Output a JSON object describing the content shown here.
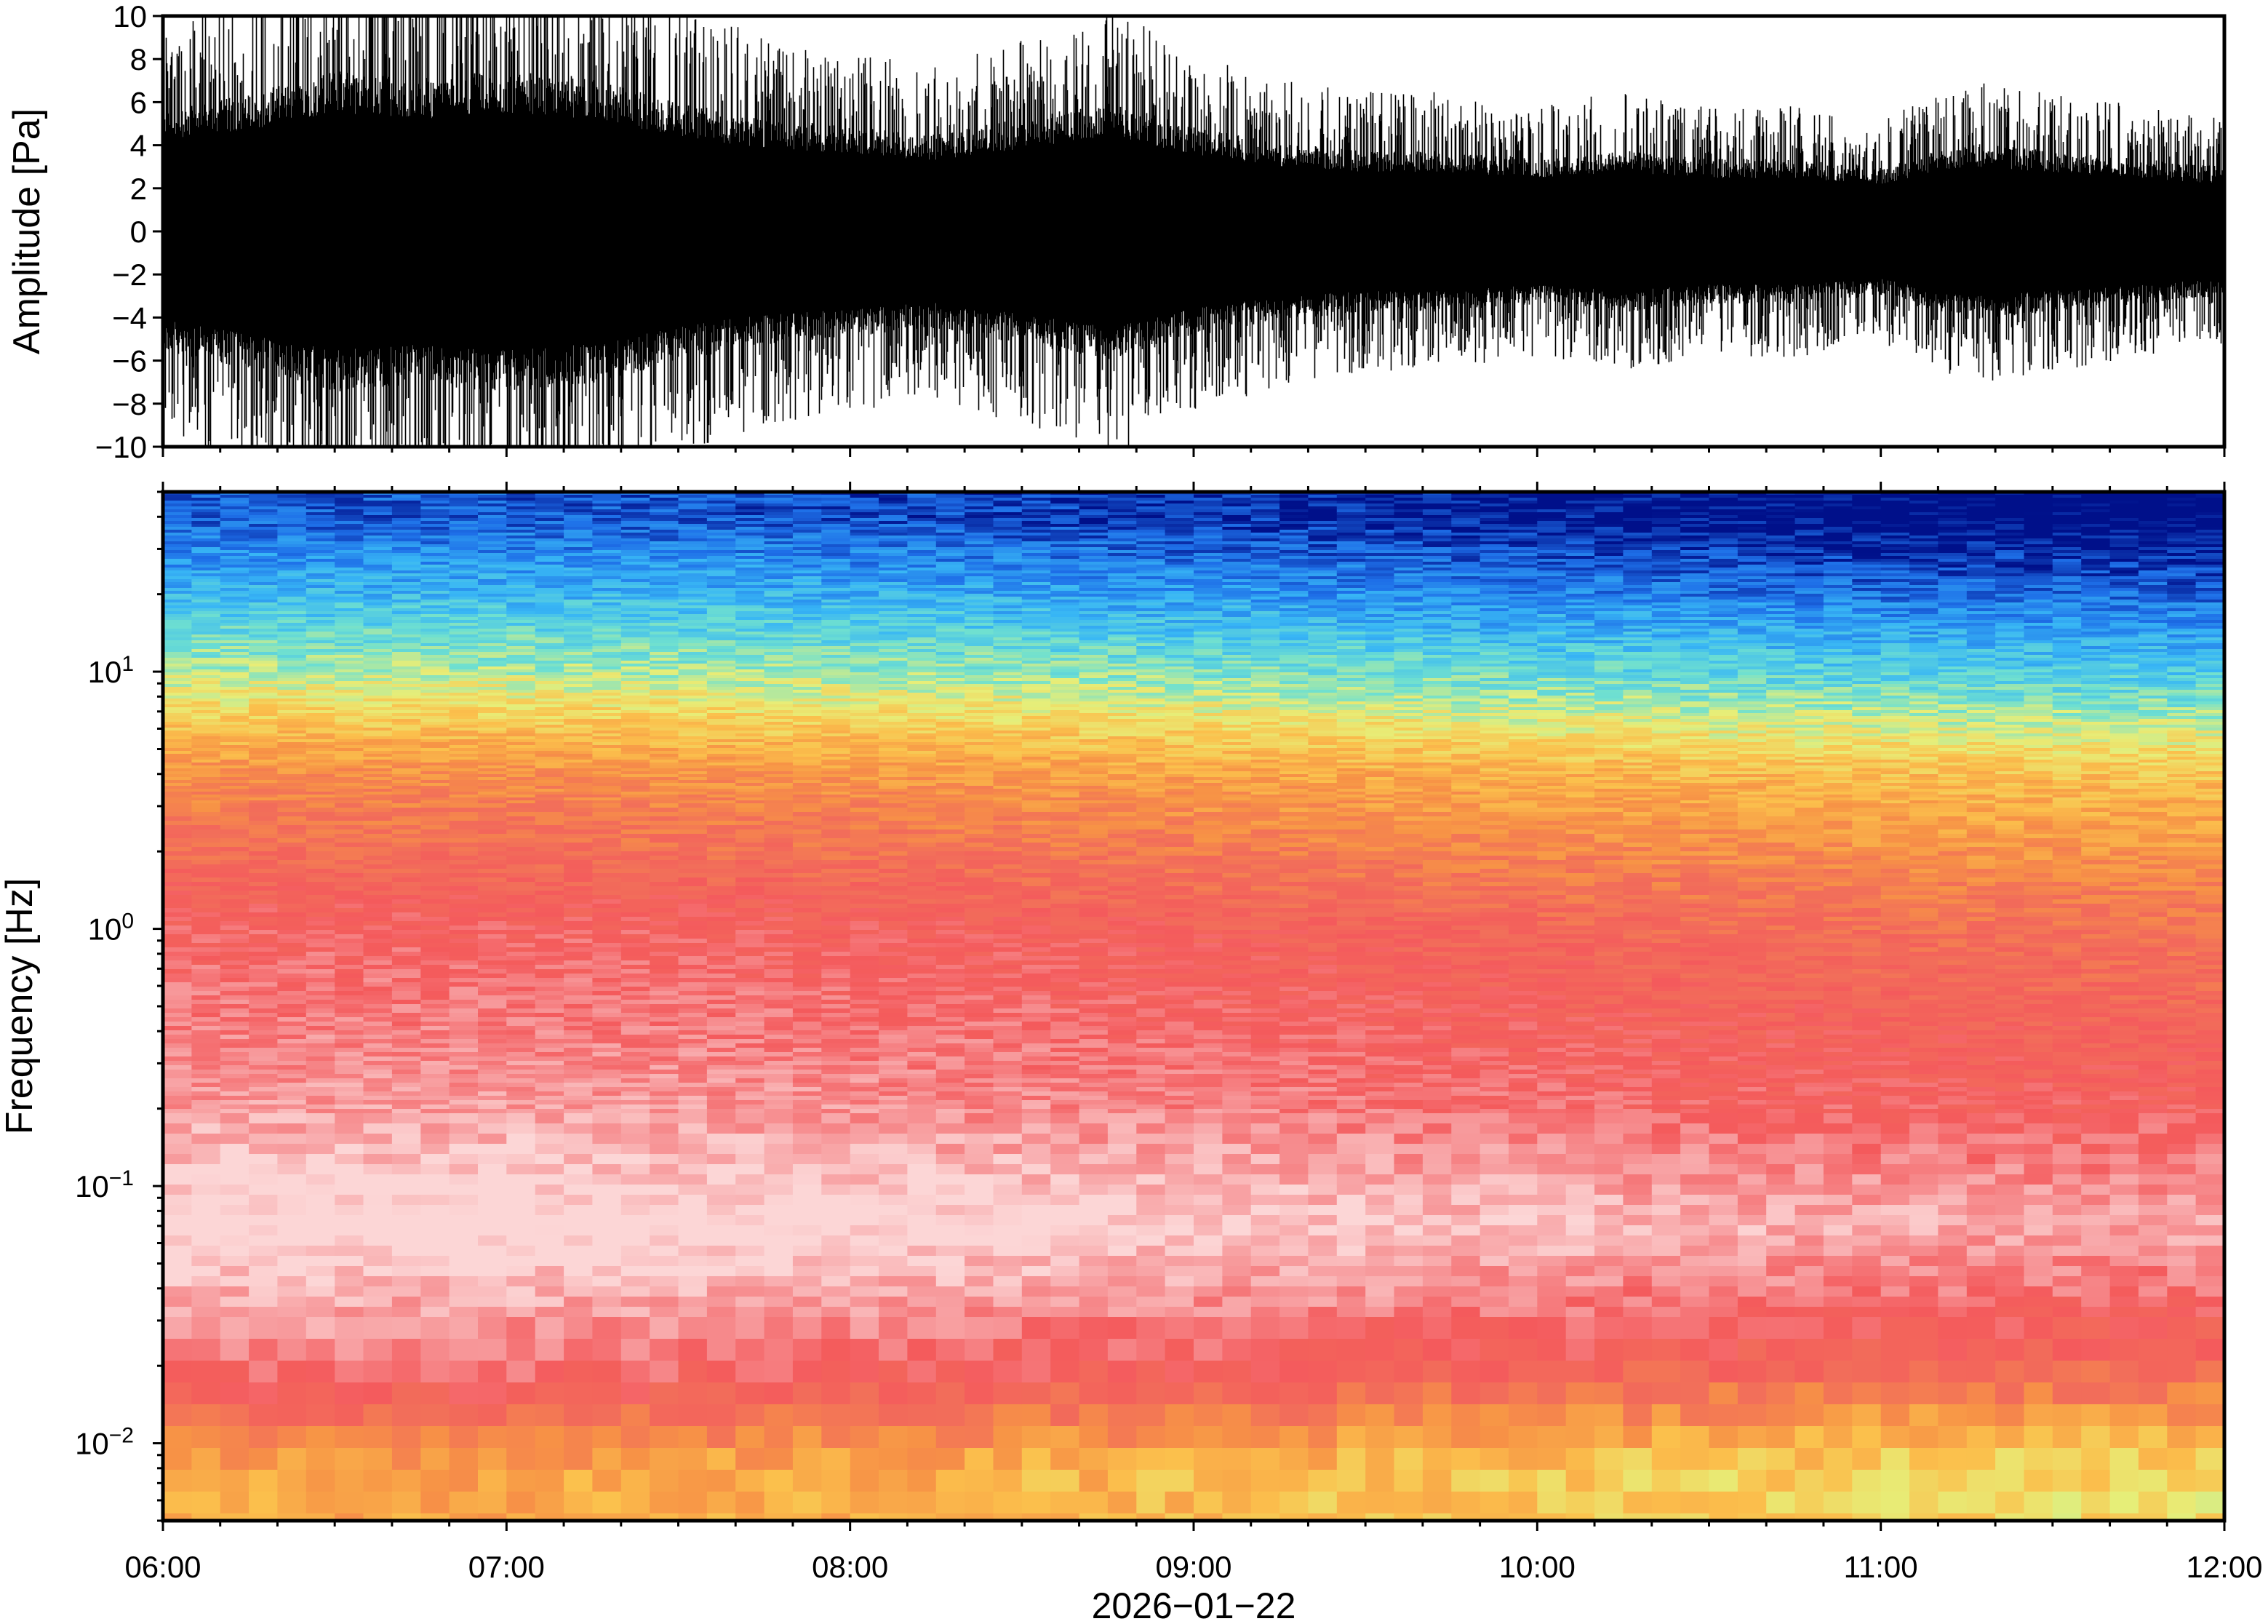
{
  "chart_data": [
    {
      "type": "line",
      "panel": "waveform",
      "ylabel": "Amplitude [Pa]",
      "ylim": [
        -10,
        10
      ],
      "yticks": [
        "10",
        "8",
        "6",
        "4",
        "2",
        "0",
        "−2",
        "−4",
        "−6",
        "−8",
        "−10"
      ],
      "ytick_values": [
        10,
        8,
        6,
        4,
        2,
        0,
        -2,
        -4,
        -6,
        -8,
        -10
      ],
      "envelope_time_hours": [
        6.0,
        6.25,
        6.5,
        6.75,
        7.0,
        7.25,
        7.5,
        7.75,
        8.0,
        8.25,
        8.5,
        8.75,
        9.0,
        9.25,
        9.5,
        9.75,
        10.0,
        10.25,
        10.5,
        10.75,
        11.0,
        11.25,
        11.5,
        11.75,
        12.0
      ],
      "envelope_upper_pa": [
        7.5,
        8.5,
        10,
        9.5,
        10,
        9.5,
        8.0,
        7.0,
        6.5,
        6.0,
        7.0,
        8.0,
        6.5,
        5.5,
        5.0,
        5.0,
        4.5,
        5.0,
        4.5,
        4.5,
        4.0,
        5.5,
        5.0,
        4.5,
        4.0
      ],
      "envelope_lower_pa": [
        -7.5,
        -8.5,
        -10,
        -9.5,
        -10,
        -9.5,
        -8.0,
        -7.0,
        -6.5,
        -6.0,
        -7.0,
        -8.0,
        -6.5,
        -5.5,
        -5.0,
        -5.0,
        -4.5,
        -5.0,
        -4.5,
        -4.5,
        -4.0,
        -5.5,
        -5.0,
        -4.5,
        -4.0
      ],
      "line_color": "#000000"
    },
    {
      "type": "heatmap",
      "panel": "spectrogram",
      "ylabel": "Frequency [Hz]",
      "yscale": "log",
      "ylim_hz": [
        0.005,
        50
      ],
      "yticks": [
        {
          "value": 10,
          "base": "10",
          "exp": "1"
        },
        {
          "value": 1,
          "base": "10",
          "exp": "0"
        },
        {
          "value": 0.1,
          "base": "10",
          "exp": "−1"
        },
        {
          "value": 0.01,
          "base": "10",
          "exp": "−2"
        }
      ],
      "xlabel": "2026−01−22",
      "xticks": [
        "06:00",
        "07:00",
        "08:00",
        "09:00",
        "10:00",
        "11:00",
        "12:00"
      ],
      "xtick_hours": [
        6,
        7,
        8,
        9,
        10,
        11,
        12
      ],
      "colormap": "rainbow (dark blue → cyan → yellow → orange → red → pink)",
      "colormap_stops": [
        "#00108a",
        "#1e6fe8",
        "#38b6f5",
        "#6fe0d0",
        "#e7ee78",
        "#fbc04c",
        "#f79246",
        "#f26e5a",
        "#f45a5c",
        "#f7989a",
        "#fcd6d6"
      ],
      "band_description": [
        {
          "freq_hz": 40,
          "level": 0.02
        },
        {
          "freq_hz": 20,
          "level": 0.15
        },
        {
          "freq_hz": 10,
          "level": 0.3
        },
        {
          "freq_hz": 4,
          "level": 0.55
        },
        {
          "freq_hz": 1,
          "level": 0.75
        },
        {
          "freq_hz": 0.2,
          "level": 0.85
        },
        {
          "freq_hz": 0.07,
          "level": 0.98
        },
        {
          "freq_hz": 0.02,
          "level": 0.78
        },
        {
          "freq_hz": 0.008,
          "level": 0.5
        }
      ]
    }
  ],
  "colors": {
    "frame": "#000000",
    "background": "#ffffff"
  }
}
